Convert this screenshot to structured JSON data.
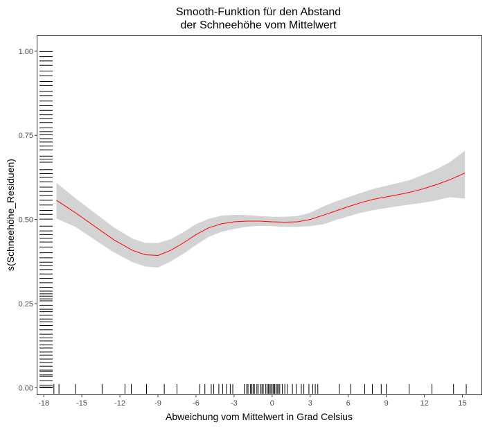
{
  "chart_data": {
    "type": "line",
    "title": [
      "Smooth-Funktion für den Abstand",
      "der Schneehöhe vom Mittelwert"
    ],
    "xlabel": "Abweichung vom Mittelwert in Grad Celsius",
    "ylabel": "s(Schneehöhe_Residuen)",
    "xlim": [
      -18.5,
      16.5
    ],
    "ylim": [
      -0.02,
      1.045
    ],
    "x_ticks": [
      -18,
      -15,
      -12,
      -9,
      -6,
      -3,
      0,
      3,
      6,
      9,
      12,
      15
    ],
    "x_tick_labels": [
      "-18",
      "-15",
      "-12",
      "-9",
      "-6",
      "-3",
      "0",
      "3",
      "6",
      "9",
      "12",
      "15"
    ],
    "y_ticks": [
      0,
      0.25,
      0.5,
      0.75,
      1
    ],
    "y_tick_labels": [
      "0.00",
      "0.25",
      "0.50",
      "0.75",
      "1.00"
    ],
    "grid": false,
    "colors": {
      "line": "#ff0000",
      "band": "#d3d3d3",
      "rug": "#000000",
      "axis": "#333333"
    },
    "series": [
      {
        "x": [
          -17.0,
          -15.5,
          -14.0,
          -12.5,
          -11.0,
          -10.0,
          -9.0,
          -8.0,
          -7.0,
          -6.0,
          -5.0,
          -4.0,
          -3.0,
          -2.0,
          -1.0,
          0.0,
          1.0,
          2.0,
          3.0,
          4.0,
          5.0,
          6.0,
          7.0,
          8.0,
          9.0,
          10.0,
          11.0,
          12.0,
          13.0,
          14.0,
          15.2
        ],
        "y": [
          0.557,
          0.52,
          0.48,
          0.44,
          0.408,
          0.395,
          0.393,
          0.408,
          0.43,
          0.455,
          0.475,
          0.487,
          0.493,
          0.495,
          0.495,
          0.493,
          0.492,
          0.493,
          0.5,
          0.512,
          0.525,
          0.538,
          0.55,
          0.56,
          0.567,
          0.574,
          0.582,
          0.592,
          0.604,
          0.618,
          0.638
        ],
        "lower": [
          0.503,
          0.478,
          0.44,
          0.403,
          0.373,
          0.36,
          0.357,
          0.375,
          0.398,
          0.424,
          0.448,
          0.463,
          0.472,
          0.478,
          0.481,
          0.48,
          0.478,
          0.478,
          0.48,
          0.485,
          0.498,
          0.509,
          0.52,
          0.528,
          0.534,
          0.54,
          0.545,
          0.55,
          0.557,
          0.566,
          0.562
        ],
        "upper": [
          0.609,
          0.563,
          0.52,
          0.477,
          0.443,
          0.43,
          0.43,
          0.441,
          0.462,
          0.486,
          0.502,
          0.511,
          0.514,
          0.513,
          0.51,
          0.508,
          0.508,
          0.51,
          0.52,
          0.538,
          0.553,
          0.566,
          0.579,
          0.591,
          0.6,
          0.609,
          0.619,
          0.634,
          0.65,
          0.67,
          0.704
        ]
      }
    ],
    "rug_x": [
      -17.2,
      -16.8,
      -15.5,
      -13.4,
      -11.6,
      -11.1,
      -9.9,
      -8.5,
      -7.5,
      -5.7,
      -5.3,
      -4.8,
      -4.6,
      -4.2,
      -3.9,
      -3.6,
      -3.3,
      -3.1,
      -2.2,
      -2.0,
      -1.9,
      -1.7,
      -1.6,
      -1.5,
      -1.4,
      -1.2,
      -1.1,
      -0.9,
      -0.8,
      -0.7,
      -0.5,
      -0.4,
      -0.3,
      -0.2,
      -0.1,
      0.0,
      0.1,
      0.2,
      0.3,
      0.4,
      0.5,
      0.6,
      0.8,
      1.0,
      1.2,
      1.6,
      1.9,
      2.3,
      2.5,
      2.9,
      3.2,
      3.4,
      3.6,
      5.3,
      6.2,
      7.3,
      7.9,
      8.6,
      9.0,
      10.8,
      12.6,
      14.3,
      15.3
    ],
    "rug_y": [
      0.0,
      0.002,
      0.007,
      0.021,
      0.033,
      0.038,
      0.049,
      0.052,
      0.064,
      0.075,
      0.085,
      0.097,
      0.106,
      0.118,
      0.127,
      0.139,
      0.148,
      0.159,
      0.172,
      0.185,
      0.196,
      0.204,
      0.215,
      0.226,
      0.233,
      0.245,
      0.258,
      0.264,
      0.272,
      0.279,
      0.287,
      0.298,
      0.312,
      0.325,
      0.338,
      0.351,
      0.362,
      0.373,
      0.386,
      0.401,
      0.418,
      0.433,
      0.444,
      0.455,
      0.466,
      0.48,
      0.501,
      0.515,
      0.527,
      0.543,
      0.557,
      0.571,
      0.583,
      0.596,
      0.612,
      0.625,
      0.636,
      0.648,
      0.67,
      0.679,
      0.688,
      0.707,
      0.718,
      0.73,
      0.74,
      0.752,
      0.761,
      0.772,
      0.788,
      0.8,
      0.811,
      0.824,
      0.838,
      0.852,
      0.868,
      0.881,
      0.898,
      0.91,
      0.927,
      0.941,
      0.958,
      0.971,
      0.984,
      0.999
    ]
  }
}
